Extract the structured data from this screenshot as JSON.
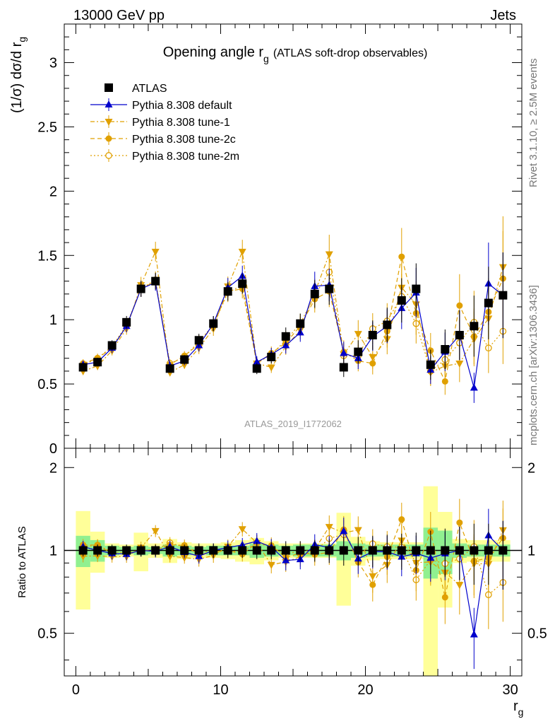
{
  "header": {
    "left": "13000 GeV pp",
    "right": "Jets"
  },
  "title": {
    "main": "Opening angle r",
    "sub": "g",
    "extra": "(ATLAS soft-drop observables)"
  },
  "ylabel_main": {
    "text": "(1/σ) dσ/d r",
    "sub": "g"
  },
  "ylabel_ratio": "Ratio to ATLAS",
  "xlabel": {
    "text": "r",
    "sub": "g"
  },
  "watermark": "ATLAS_2019_I1772062",
  "side_top": "Rivet 3.1.10, ≥ 2.5M events",
  "side_bottom": "mcplots.cern.ch [arXiv:1306.3436]",
  "colors": {
    "atlas": "#000000",
    "default": "#0000cc",
    "tune": "#e0a000",
    "band_stat": "#90f090",
    "band_total": "#ffff99"
  },
  "chart_data": {
    "type": "scatter",
    "x": [
      0.5,
      1.5,
      2.5,
      3.5,
      4.5,
      5.5,
      6.5,
      7.5,
      8.5,
      9.5,
      10.5,
      11.5,
      12.5,
      13.5,
      14.5,
      15.5,
      16.5,
      17.5,
      18.5,
      19.5,
      20.5,
      21.5,
      22.5,
      23.5,
      24.5,
      25.5,
      26.5,
      27.5,
      28.5,
      29.5
    ],
    "xlim": [
      -0.8,
      30.8
    ],
    "ylim": [
      0,
      3.3
    ],
    "ratio_ylim": [
      0.35,
      2.35
    ],
    "x_ticks": [
      "0",
      "10",
      "20",
      "30"
    ],
    "y_ticks": [
      "0",
      "0.5",
      "1",
      "1.5",
      "2",
      "2.5",
      "3"
    ],
    "ratio_ticks": [
      "0.5",
      "1",
      "2"
    ],
    "legend_position": "top-left",
    "series": [
      {
        "name": "ATLAS",
        "marker": "square",
        "values": [
          0.63,
          0.67,
          0.8,
          0.98,
          1.24,
          1.3,
          0.62,
          0.69,
          0.84,
          0.97,
          1.22,
          1.28,
          0.62,
          0.71,
          0.87,
          0.97,
          1.2,
          1.24,
          0.63,
          0.75,
          0.88,
          0.96,
          1.15,
          1.24,
          0.65,
          0.77,
          0.88,
          0.95,
          1.13,
          1.19
        ]
      },
      {
        "name": "Pythia 8.308 default",
        "marker": "triangle-up",
        "values": [
          0.65,
          0.67,
          0.78,
          0.95,
          1.24,
          1.29,
          0.64,
          0.68,
          0.8,
          0.97,
          1.25,
          1.34,
          0.67,
          0.73,
          0.8,
          0.9,
          1.26,
          1.27,
          0.74,
          0.7,
          0.87,
          0.95,
          1.09,
          1.21,
          0.61,
          0.75,
          0.88,
          0.47,
          1.28,
          1.19
        ]
      },
      {
        "name": "Pythia 8.308 tune-1",
        "marker": "triangle-down",
        "values": [
          0.6,
          0.64,
          0.76,
          0.93,
          1.27,
          1.53,
          0.59,
          0.65,
          0.78,
          0.93,
          1.26,
          1.53,
          0.66,
          0.63,
          0.79,
          0.92,
          1.21,
          1.51,
          0.73,
          0.89,
          0.71,
          0.85,
          1.25,
          1.12,
          0.59,
          0.64,
          0.66,
          0.85,
          1.01,
          1.41
        ]
      },
      {
        "name": "Pythia 8.308 tune-2c",
        "marker": "circle-filled",
        "values": [
          0.66,
          0.7,
          0.78,
          0.95,
          1.24,
          1.3,
          0.65,
          0.72,
          0.81,
          0.96,
          1.22,
          1.24,
          0.66,
          0.74,
          0.82,
          0.95,
          1.16,
          1.22,
          0.75,
          0.68,
          0.66,
          0.91,
          1.49,
          1.05,
          0.76,
          0.52,
          1.11,
          0.87,
          1.06,
          1.32
        ]
      },
      {
        "name": "Pythia 8.308 tune-2m",
        "marker": "circle-open",
        "values": [
          0.65,
          0.7,
          0.79,
          0.96,
          1.24,
          1.31,
          0.66,
          0.71,
          0.83,
          0.96,
          1.21,
          1.27,
          0.66,
          0.73,
          0.84,
          0.97,
          1.19,
          1.37,
          0.72,
          0.72,
          0.93,
          0.99,
          1.18,
          0.97,
          0.6,
          0.69,
          0.82,
          0.98,
          0.78,
          0.91
        ]
      }
    ],
    "error_rel": [
      0.05,
      0.05,
      0.05,
      0.05,
      0.05,
      0.05,
      0.05,
      0.05,
      0.06,
      0.06,
      0.06,
      0.06,
      0.07,
      0.07,
      0.08,
      0.08,
      0.09,
      0.1,
      0.12,
      0.12,
      0.13,
      0.14,
      0.15,
      0.16,
      0.18,
      0.2,
      0.22,
      0.25,
      0.25,
      0.28
    ],
    "band_stat": [
      0.13,
      0.09,
      0.04,
      0.03,
      0.04,
      0.03,
      0.05,
      0.04,
      0.03,
      0.04,
      0.04,
      0.04,
      0.06,
      0.05,
      0.04,
      0.05,
      0.05,
      0.05,
      0.08,
      0.06,
      0.05,
      0.05,
      0.05,
      0.05,
      0.21,
      0.18,
      0.06,
      0.05,
      0.05,
      0.05
    ],
    "band_total": [
      0.39,
      0.17,
      0.06,
      0.05,
      0.16,
      0.06,
      0.1,
      0.07,
      0.06,
      0.06,
      0.07,
      0.09,
      0.11,
      0.08,
      0.06,
      0.06,
      0.06,
      0.06,
      0.37,
      0.12,
      0.08,
      0.07,
      0.07,
      0.07,
      0.71,
      0.38,
      0.1,
      0.09,
      0.09,
      0.09
    ]
  }
}
